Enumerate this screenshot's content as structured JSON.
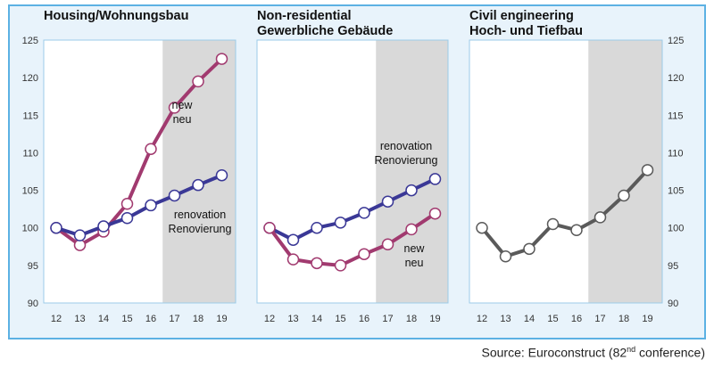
{
  "source": {
    "prefix": "Source: Euroconstruct (82",
    "sup": "nd",
    "suffix": " conference)"
  },
  "colors": {
    "renovation": "#3a3896",
    "new": "#a13a6f",
    "civil": "#5a5a5a",
    "forecast_shade": "#d9d9d9",
    "frame": "#5cb1e3"
  },
  "chart_data": [
    {
      "type": "line",
      "title": [
        "Housing/Wohnungsbau"
      ],
      "categories": [
        "12",
        "13",
        "14",
        "15",
        "16",
        "17",
        "18",
        "19"
      ],
      "ylim": [
        90,
        125
      ],
      "yticks": [
        90,
        95,
        100,
        105,
        110,
        115,
        120,
        125
      ],
      "forecast_from": "16.5",
      "series": [
        {
          "name": "new",
          "label": [
            "new",
            "neu"
          ],
          "color": "#a13a6f",
          "values": [
            100,
            97.7,
            99.5,
            103.2,
            110.5,
            116,
            119.5,
            122.5
          ]
        },
        {
          "name": "renovation",
          "label": [
            "renovation",
            "Renovierung"
          ],
          "color": "#3a3896",
          "values": [
            100,
            99,
            100.2,
            101.3,
            103,
            104.3,
            105.7,
            107
          ]
        }
      ]
    },
    {
      "type": "line",
      "title": [
        "Non-residential",
        "Gewerbliche Gebäude"
      ],
      "categories": [
        "12",
        "13",
        "14",
        "15",
        "16",
        "17",
        "18",
        "19"
      ],
      "ylim": [
        90,
        125
      ],
      "forecast_from": "16.5",
      "series": [
        {
          "name": "renovation",
          "label": [
            "renovation",
            "Renovierung"
          ],
          "color": "#3a3896",
          "values": [
            100,
            98.4,
            100,
            100.7,
            102,
            103.5,
            105,
            106.5
          ]
        },
        {
          "name": "new",
          "label": [
            "new",
            "neu"
          ],
          "color": "#a13a6f",
          "values": [
            100,
            95.8,
            95.3,
            95,
            96.5,
            97.8,
            99.8,
            101.9
          ]
        }
      ]
    },
    {
      "type": "line",
      "title": [
        "Civil engineering",
        "Hoch- und Tiefbau"
      ],
      "categories": [
        "12",
        "13",
        "14",
        "15",
        "16",
        "17",
        "18",
        "19"
      ],
      "ylim": [
        90,
        125
      ],
      "yticks": [
        90,
        95,
        100,
        105,
        110,
        115,
        120,
        125
      ],
      "forecast_from": "16.5",
      "series": [
        {
          "name": "civil",
          "color": "#5a5a5a",
          "values": [
            100,
            96.2,
            97.2,
            100.5,
            99.7,
            101.4,
            104.3,
            107.7
          ]
        }
      ]
    }
  ]
}
